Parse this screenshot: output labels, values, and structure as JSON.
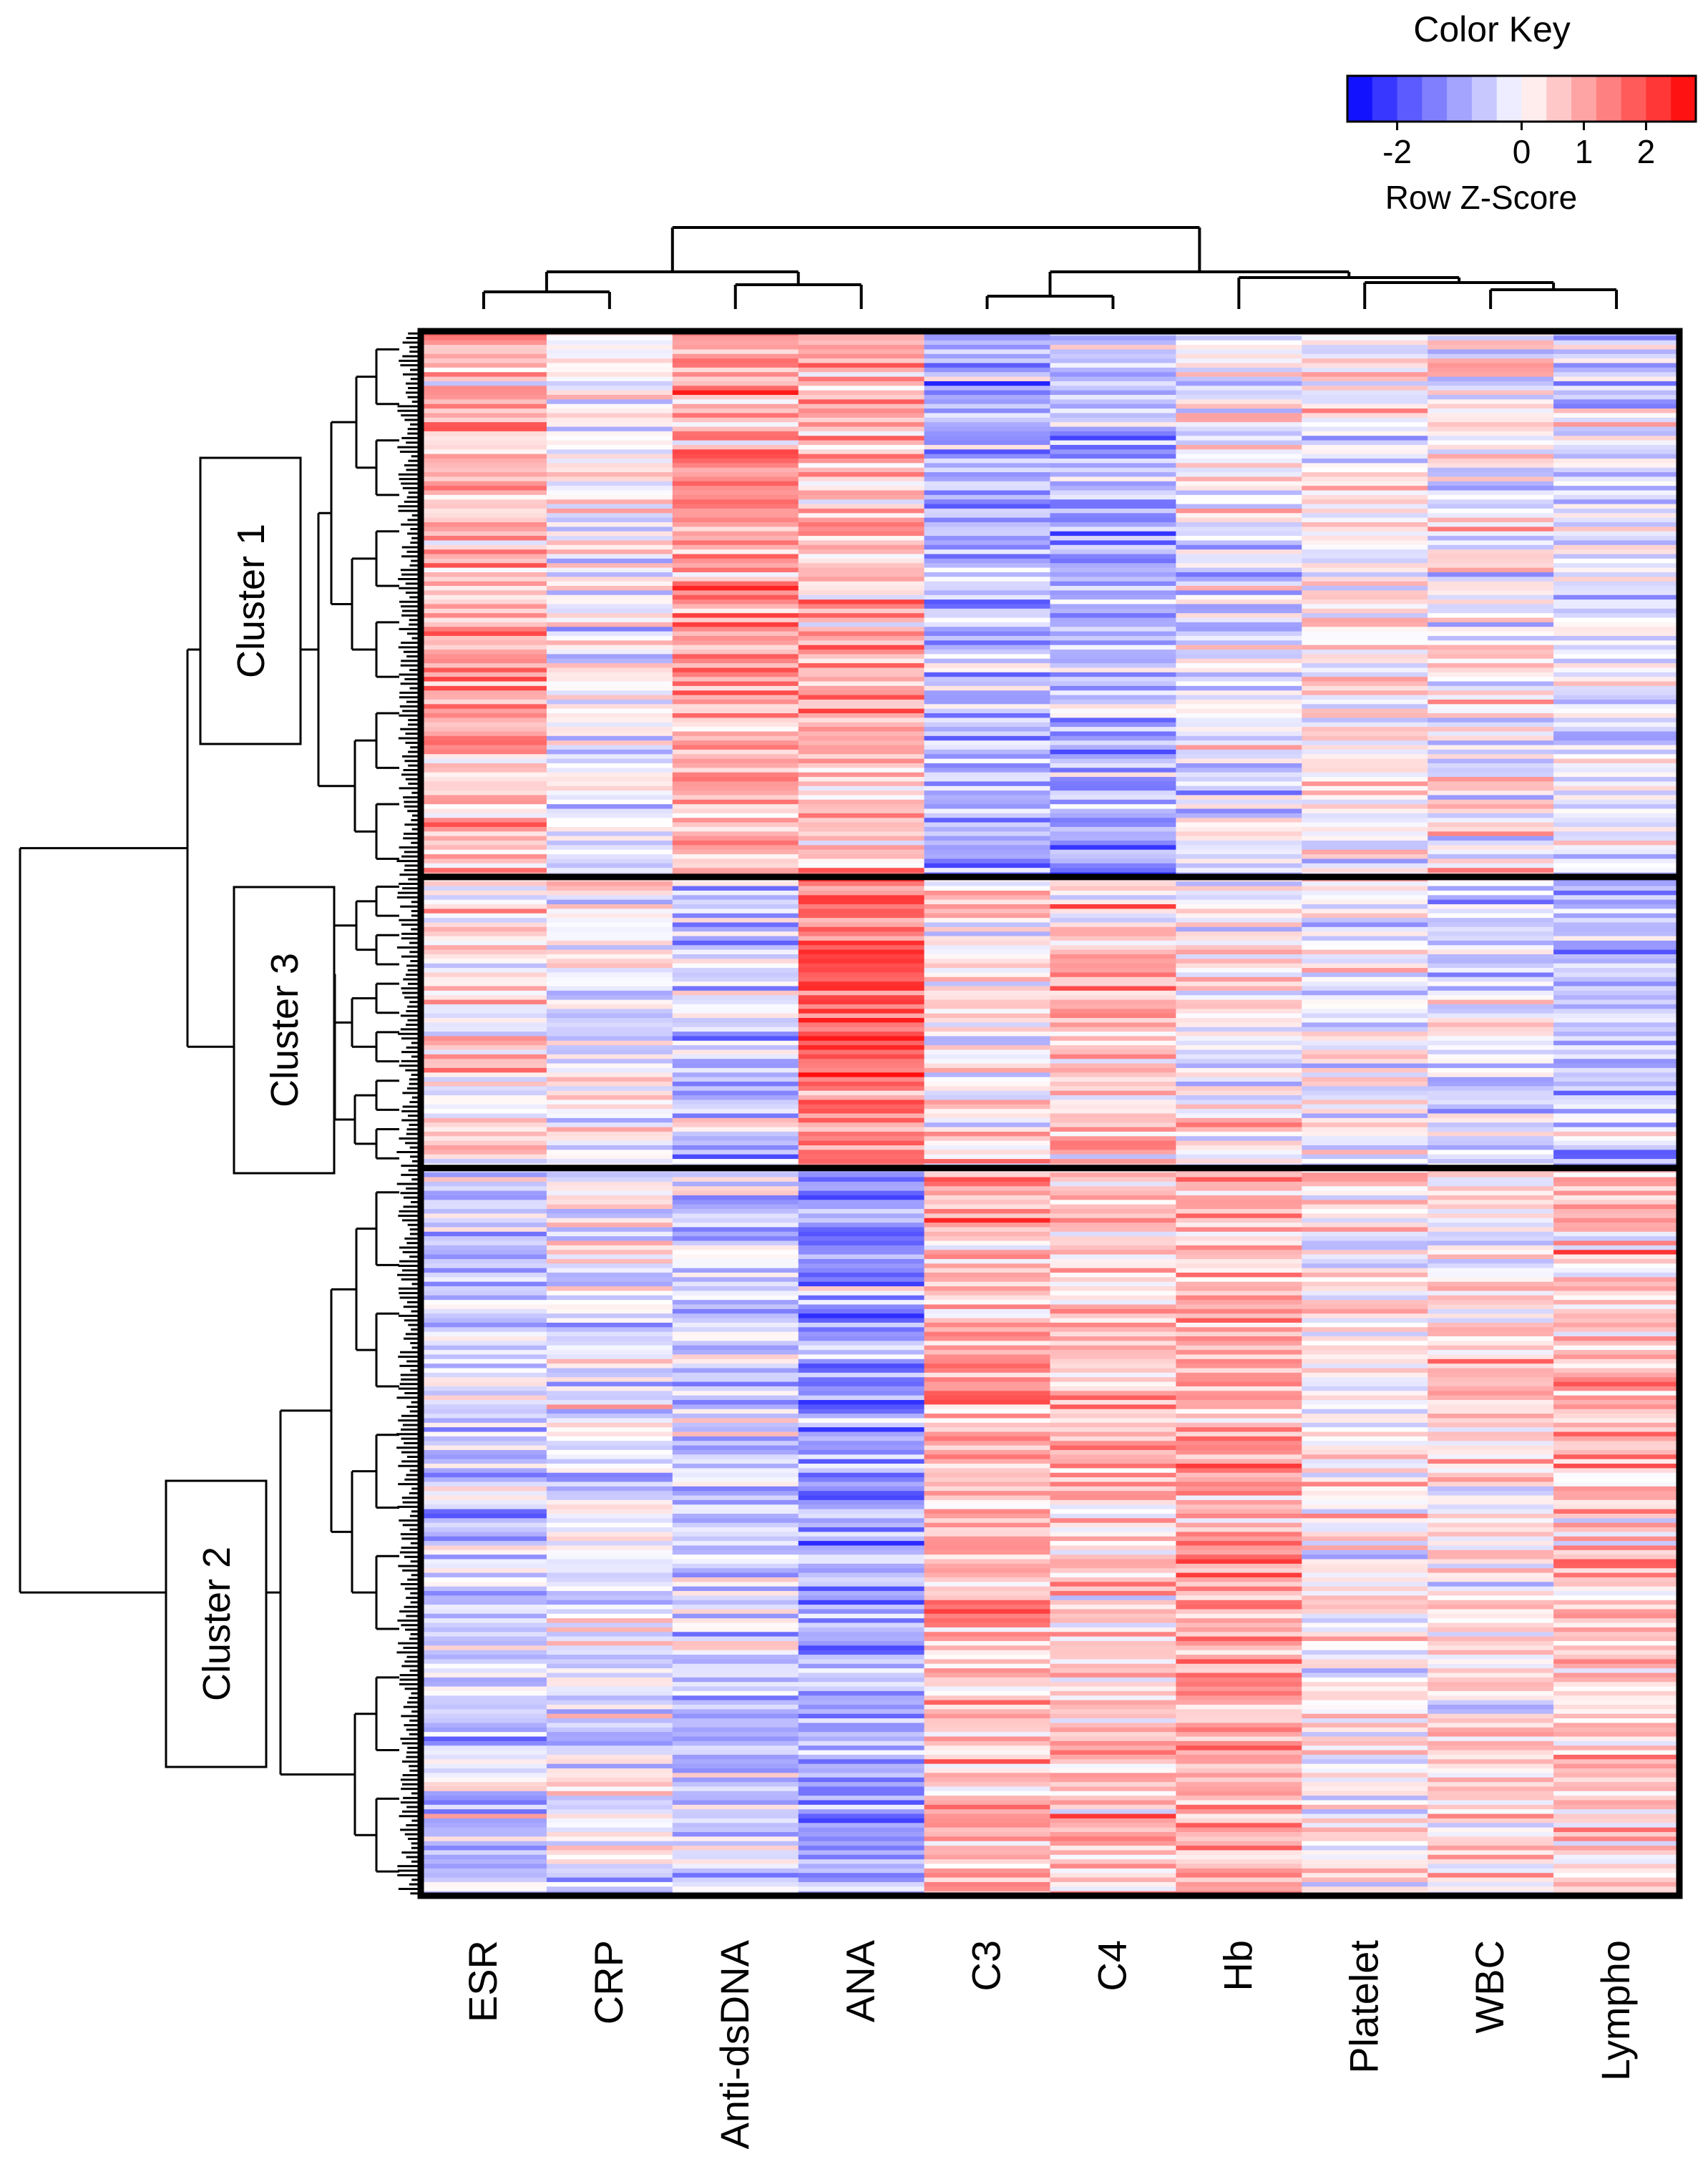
{
  "chart_data": {
    "type": "heatmap",
    "title": "",
    "columns": [
      "ESR",
      "CRP",
      "Anti-dsDNA",
      "ANA",
      "C3",
      "C4",
      "Hb",
      "Platelet",
      "WBC",
      "Lympho"
    ],
    "color_key": {
      "title": "Color Key",
      "xlabel": "Row Z-Score",
      "ticks": [
        "-2",
        "0",
        "1",
        "2"
      ],
      "tick_values": [
        -2,
        0,
        1,
        2
      ],
      "range": [
        -2.8,
        2.8
      ],
      "low_color": "#0000ff",
      "mid_color": "#ffffff",
      "high_color": "#ff0000"
    },
    "clusters": [
      {
        "label": "Cluster 1",
        "rows": 120,
        "mean_z": [
          0.8,
          0.0,
          1.0,
          0.8,
          -0.9,
          -0.8,
          -0.2,
          0.1,
          0.0,
          -0.3
        ]
      },
      {
        "label": "Cluster 3",
        "rows": 64,
        "mean_z": [
          0.3,
          0.0,
          -0.5,
          1.5,
          0.3,
          0.6,
          0.2,
          -0.1,
          -0.3,
          -0.6
        ]
      },
      {
        "label": "Cluster 2",
        "rows": 160,
        "mean_z": [
          -0.5,
          -0.1,
          -0.6,
          -1.0,
          0.8,
          0.6,
          1.0,
          0.2,
          0.3,
          0.7
        ]
      }
    ],
    "column_dendrogram_pairs": [
      [
        "ESR",
        "CRP"
      ],
      [
        "Anti-dsDNA",
        "ANA"
      ],
      [
        "C3",
        "C4"
      ],
      [
        "WBC",
        "Lympho"
      ]
    ],
    "legend_position": "top-right",
    "grid": false
  }
}
